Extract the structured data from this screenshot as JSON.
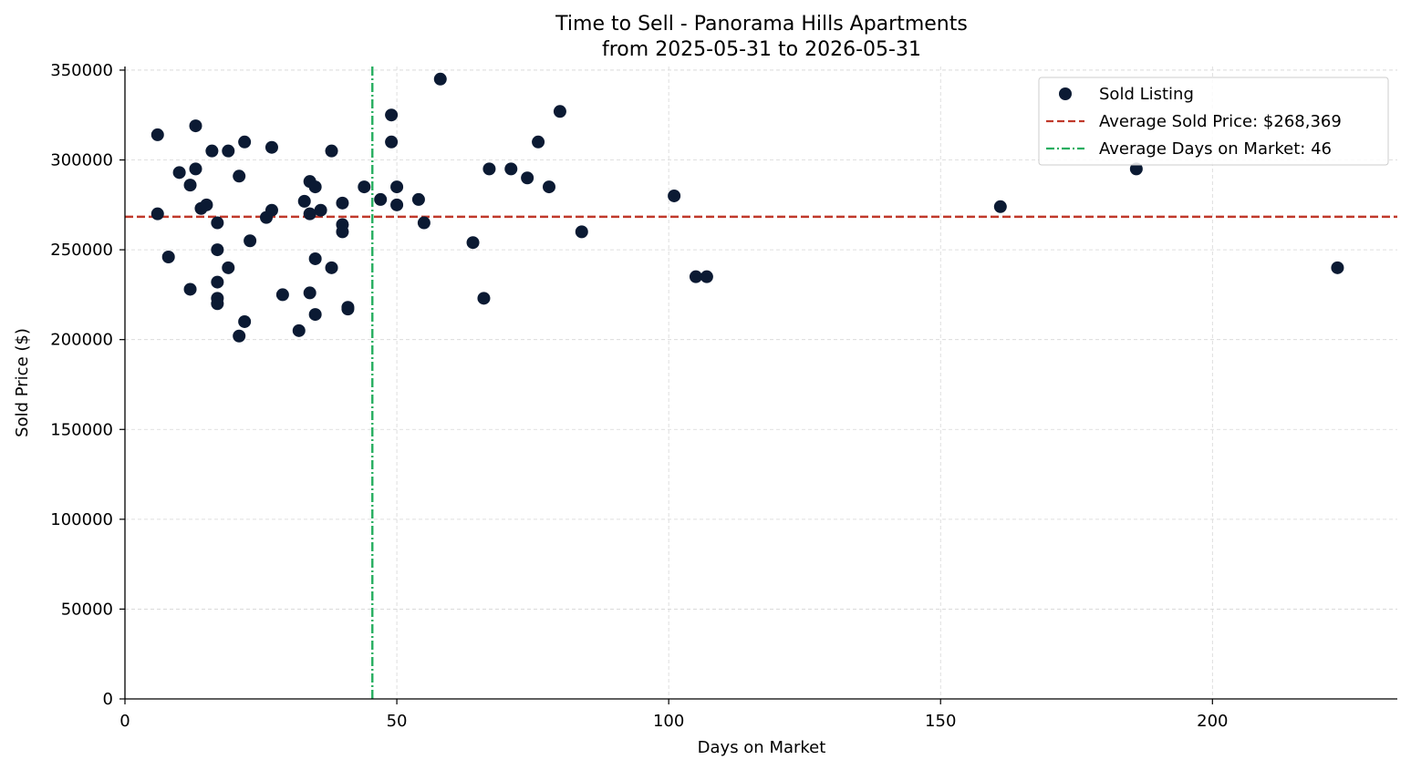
{
  "chart_data": {
    "type": "scatter",
    "title": "Time to Sell - Panorama Hills Apartments",
    "subtitle": "from 2025-05-31 to 2026-05-31",
    "xlabel": "Days on Market",
    "ylabel": "Sold Price ($)",
    "xlim": [
      0,
      234
    ],
    "ylim": [
      0,
      352000
    ],
    "xticks": [
      0,
      50,
      100,
      150,
      200
    ],
    "yticks": [
      0,
      50000,
      100000,
      150000,
      200000,
      250000,
      300000,
      350000
    ],
    "grid": true,
    "legend_position": "top-right",
    "colors": {
      "points": "#0b1a33",
      "avg_price_line": "#c0392b",
      "avg_days_line": "#27ae60"
    },
    "series": [
      {
        "name": "Sold Listing",
        "points": [
          {
            "x": 6,
            "y": 314000
          },
          {
            "x": 6,
            "y": 270000
          },
          {
            "x": 8,
            "y": 246000
          },
          {
            "x": 10,
            "y": 293000
          },
          {
            "x": 12,
            "y": 286000
          },
          {
            "x": 12,
            "y": 228000
          },
          {
            "x": 13,
            "y": 319000
          },
          {
            "x": 13,
            "y": 295000
          },
          {
            "x": 14,
            "y": 273000
          },
          {
            "x": 15,
            "y": 275000
          },
          {
            "x": 16,
            "y": 305000
          },
          {
            "x": 17,
            "y": 265000
          },
          {
            "x": 17,
            "y": 250000
          },
          {
            "x": 17,
            "y": 232000
          },
          {
            "x": 17,
            "y": 223000
          },
          {
            "x": 17,
            "y": 220000
          },
          {
            "x": 19,
            "y": 305000
          },
          {
            "x": 19,
            "y": 240000
          },
          {
            "x": 21,
            "y": 291000
          },
          {
            "x": 21,
            "y": 202000
          },
          {
            "x": 22,
            "y": 310000
          },
          {
            "x": 22,
            "y": 210000
          },
          {
            "x": 23,
            "y": 255000
          },
          {
            "x": 26,
            "y": 268000
          },
          {
            "x": 27,
            "y": 307000
          },
          {
            "x": 27,
            "y": 272000
          },
          {
            "x": 29,
            "y": 225000
          },
          {
            "x": 32,
            "y": 205000
          },
          {
            "x": 33,
            "y": 277000
          },
          {
            "x": 34,
            "y": 288000
          },
          {
            "x": 34,
            "y": 270000
          },
          {
            "x": 34,
            "y": 226000
          },
          {
            "x": 35,
            "y": 285000
          },
          {
            "x": 35,
            "y": 245000
          },
          {
            "x": 35,
            "y": 214000
          },
          {
            "x": 36,
            "y": 272000
          },
          {
            "x": 38,
            "y": 305000
          },
          {
            "x": 38,
            "y": 240000
          },
          {
            "x": 40,
            "y": 276000
          },
          {
            "x": 40,
            "y": 264000
          },
          {
            "x": 40,
            "y": 260000
          },
          {
            "x": 41,
            "y": 218000
          },
          {
            "x": 41,
            "y": 217000
          },
          {
            "x": 44,
            "y": 285000
          },
          {
            "x": 47,
            "y": 278000
          },
          {
            "x": 49,
            "y": 325000
          },
          {
            "x": 49,
            "y": 310000
          },
          {
            "x": 50,
            "y": 285000
          },
          {
            "x": 50,
            "y": 275000
          },
          {
            "x": 54,
            "y": 278000
          },
          {
            "x": 55,
            "y": 265000
          },
          {
            "x": 58,
            "y": 345000
          },
          {
            "x": 64,
            "y": 254000
          },
          {
            "x": 66,
            "y": 223000
          },
          {
            "x": 67,
            "y": 295000
          },
          {
            "x": 71,
            "y": 295000
          },
          {
            "x": 74,
            "y": 290000
          },
          {
            "x": 76,
            "y": 310000
          },
          {
            "x": 78,
            "y": 285000
          },
          {
            "x": 80,
            "y": 327000
          },
          {
            "x": 84,
            "y": 260000
          },
          {
            "x": 101,
            "y": 280000
          },
          {
            "x": 105,
            "y": 235000
          },
          {
            "x": 107,
            "y": 235000
          },
          {
            "x": 161,
            "y": 274000
          },
          {
            "x": 186,
            "y": 295000
          },
          {
            "x": 223,
            "y": 240000
          }
        ]
      }
    ],
    "reference_lines": [
      {
        "name": "Average Sold Price: $268,369",
        "orientation": "horizontal",
        "value": 268369,
        "style": "dashed"
      },
      {
        "name": "Average Days on Market: 46",
        "orientation": "vertical",
        "value": 45.5,
        "style": "dashdot"
      }
    ]
  }
}
